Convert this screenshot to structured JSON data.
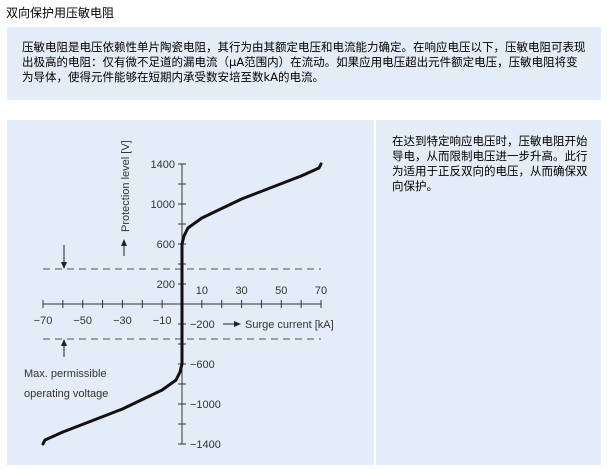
{
  "title": "双向保护用压敏电阻",
  "intro": "压敏电阻是电压依赖性单片陶瓷电阻，其行为由其额定电压和电流能力确定。在响应电压以下，压敏电阻可表现出极高的电阻：仅有微不足道的漏电流（μA范围内）在流动。如果应用电压超出元件额定电压，压敏电阻将变为导体，使得元件能够在短期内承受数安培至数kA的电流。",
  "side_text": "在达到特定响应电压时，压敏电阻开始导电，从而限制电压进一步升高。此行为适用于正反双向的电压，从而确保双向保护。",
  "chart_data": {
    "type": "line",
    "xlabel": "Surge current [kA]",
    "ylabel": "Protection level [V]",
    "xlim": [
      -70,
      70
    ],
    "ylim": [
      -1400,
      1400
    ],
    "x_ticks": [
      -70,
      -60,
      -50,
      -40,
      -30,
      -20,
      -10,
      0,
      10,
      20,
      30,
      40,
      50,
      60,
      70
    ],
    "x_tick_labels": [
      "−70",
      "−50",
      "−30",
      "−10",
      "10",
      "30",
      "50",
      "70"
    ],
    "x_tick_label_values": [
      -70,
      -50,
      -30,
      -10,
      10,
      30,
      50,
      70
    ],
    "y_tick_labels": [
      "1400",
      "1000",
      "600",
      "200",
      "−200",
      "−600",
      "−1000",
      "−1400"
    ],
    "y_tick_label_values": [
      1400,
      1000,
      600,
      200,
      -200,
      -600,
      -1000,
      -1400
    ],
    "series": [
      {
        "x": [
          -70,
          -69,
          -60,
          -30,
          -10,
          -3,
          -1,
          0,
          0,
          1,
          3,
          10,
          30,
          60,
          69,
          70
        ],
        "y": [
          -1400,
          -1360,
          -1280,
          -1050,
          -860,
          -760,
          -680,
          -600,
          600,
          680,
          760,
          860,
          1050,
          1280,
          1360,
          1400
        ]
      }
    ],
    "reference_lines": [
      350,
      -350
    ],
    "annotation": "Max. permissible\noperating voltage",
    "annotation_lines": [
      "Max. permissible",
      "operating voltage"
    ]
  }
}
